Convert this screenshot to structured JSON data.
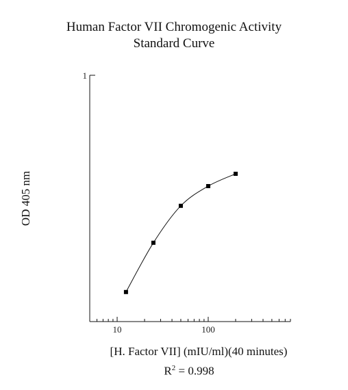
{
  "chart_data": {
    "type": "line",
    "title_lines": [
      "Human Factor VII Chromogenic Activity",
      "Standard Curve"
    ],
    "xlabel": "[H. Factor VII] (mIU/ml)(40 minutes)",
    "ylabel": "OD 405 nm",
    "x_scale": "log",
    "xlim": [
      5,
      800
    ],
    "ylim": [
      0,
      1
    ],
    "x_tick_labels": [
      {
        "value": 10,
        "label": "10"
      },
      {
        "value": 100,
        "label": "100"
      }
    ],
    "y_tick_labels": [
      {
        "value": 1,
        "label": "1"
      }
    ],
    "grid": false,
    "series": [
      {
        "x": [
          12.5,
          25,
          50,
          100,
          200
        ],
        "y": [
          0.12,
          0.32,
          0.47,
          0.55,
          0.6
        ]
      }
    ],
    "annotation": {
      "prefix": "R",
      "superscript": "2",
      "text": " = 0.998"
    }
  }
}
